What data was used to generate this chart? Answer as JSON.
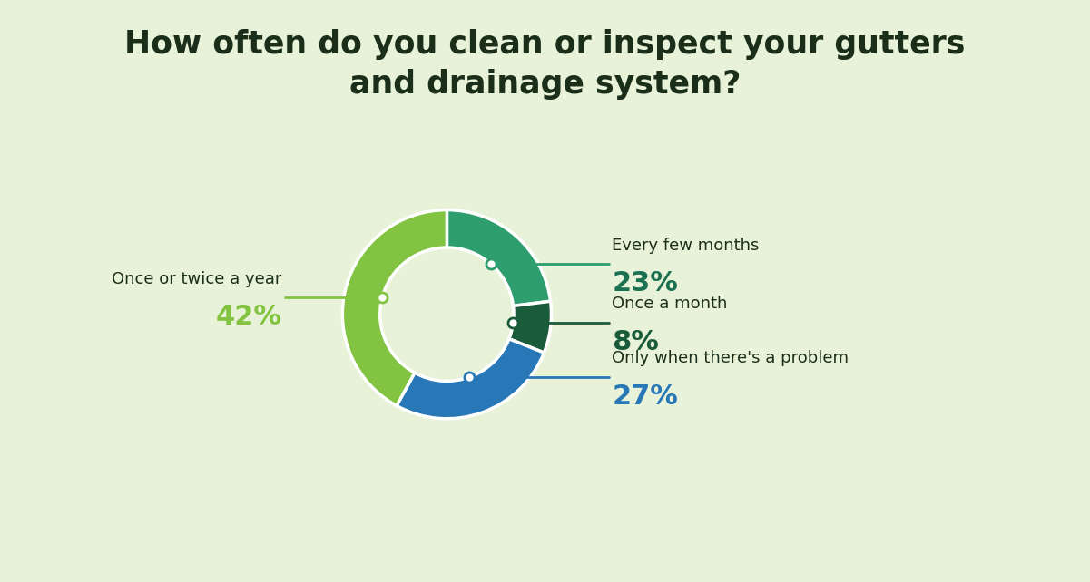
{
  "title": "How often do you clean or inspect your gutters\nand drainage system?",
  "title_fontsize": 25,
  "title_color": "#1a2e1a",
  "background_color": "#e8f2d8",
  "segments": [
    {
      "label": "Every few months",
      "pct": 23,
      "color": "#2e9e6e",
      "pct_color": "#1a7050"
    },
    {
      "label": "Once a month",
      "pct": 8,
      "color": "#1a5c3a",
      "pct_color": "#1a5c3a"
    },
    {
      "label": "Only when there's a problem",
      "pct": 27,
      "color": "#2878b8",
      "pct_color": "#2878b8"
    },
    {
      "label": "Once or twice a year",
      "pct": 42,
      "color": "#82c341",
      "pct_color": "#82c341"
    }
  ],
  "donut_width": 0.36,
  "start_angle": 90,
  "label_color": "#1a2e1a",
  "label_fontsize": 13,
  "pct_fontsize": 22
}
